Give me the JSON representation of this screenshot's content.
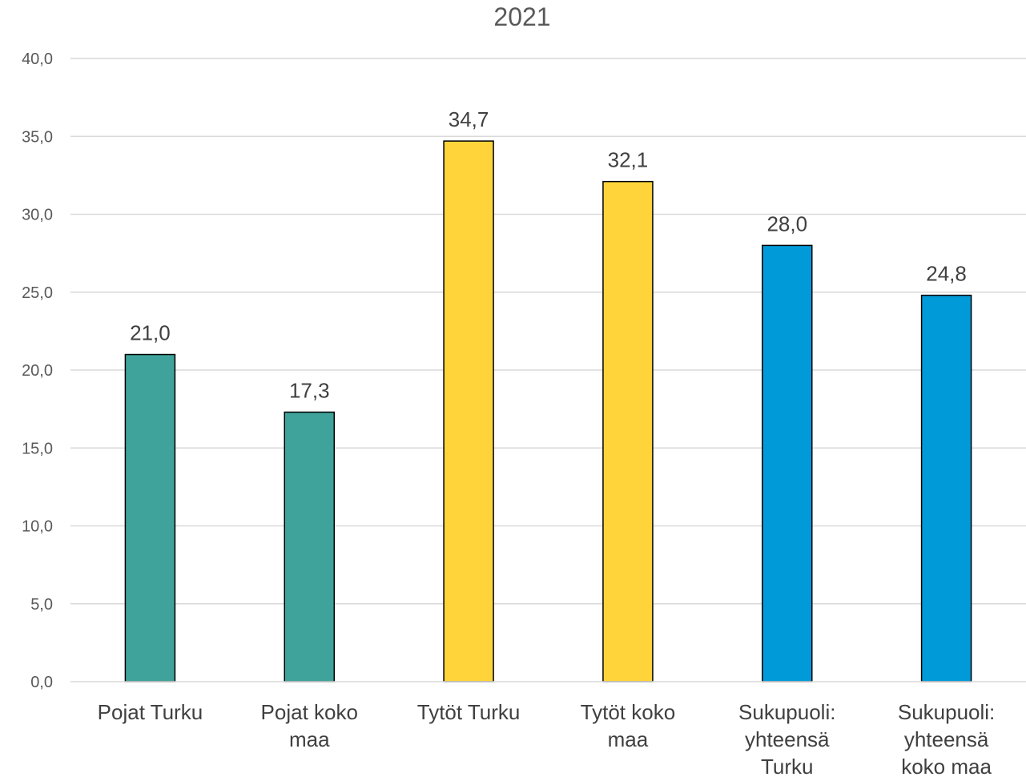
{
  "chart_data": {
    "type": "bar",
    "title": "2021",
    "categories": [
      "Pojat Turku",
      "Pojat koko maa",
      "Tytöt Turku",
      "Tytöt koko maa",
      "Sukupuoli: yhteensä Turku",
      "Sukupuoli: yhteensä koko maa"
    ],
    "category_lines": [
      [
        "Pojat Turku"
      ],
      [
        "Pojat koko",
        "maa"
      ],
      [
        "Tytöt Turku"
      ],
      [
        "Tytöt koko",
        "maa"
      ],
      [
        "Sukupuoli:",
        "yhteensä",
        "Turku"
      ],
      [
        "Sukupuoli:",
        "yhteensä",
        "koko maa"
      ]
    ],
    "values": [
      21.0,
      17.3,
      34.7,
      32.1,
      28.0,
      24.8
    ],
    "value_labels": [
      "21,0",
      "17,3",
      "34,7",
      "32,1",
      "28,0",
      "24,8"
    ],
    "bar_colors": [
      "#3fa39b",
      "#3fa39b",
      "#ffd43b",
      "#ffd43b",
      "#009ad9",
      "#009ad9"
    ],
    "ylim": [
      0,
      40
    ],
    "yticks": [
      0,
      5,
      10,
      15,
      20,
      25,
      30,
      35,
      40
    ],
    "ytick_labels": [
      "0,0",
      "5,0",
      "10,0",
      "15,0",
      "20,0",
      "25,0",
      "30,0",
      "35,0",
      "40,0"
    ],
    "xlabel": "",
    "ylabel": "",
    "grid": true,
    "legend": "none"
  }
}
